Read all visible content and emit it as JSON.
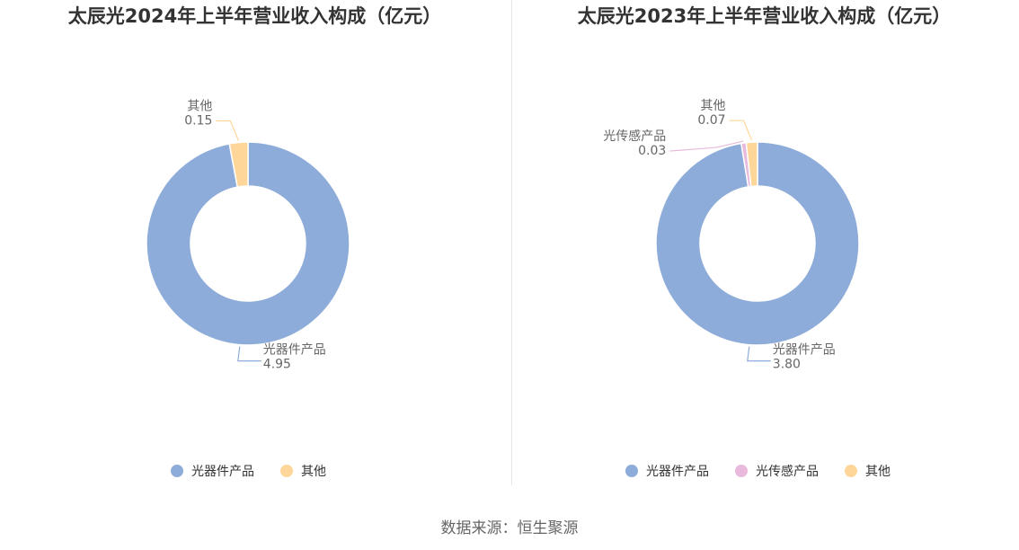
{
  "chart_data": [
    {
      "type": "pie",
      "title": "太辰光2024年上半年营业收入构成（亿元）",
      "series": [
        {
          "name": "光器件产品",
          "value": 4.95,
          "label": "4.95",
          "color": "#8eacd9"
        },
        {
          "name": "其他",
          "value": 0.15,
          "label": "0.15",
          "color": "#ffd699"
        }
      ],
      "legend": {
        "position": "bottom"
      }
    },
    {
      "type": "pie",
      "title": "太辰光2023年上半年营业收入构成（亿元）",
      "series": [
        {
          "name": "光器件产品",
          "value": 3.8,
          "label": "3.80",
          "color": "#8eacd9"
        },
        {
          "name": "光传感产品",
          "value": 0.03,
          "label": "0.03",
          "color": "#e8b9dc"
        },
        {
          "name": "其他",
          "value": 0.07,
          "label": "0.07",
          "color": "#ffd699"
        }
      ],
      "legend": {
        "position": "bottom"
      }
    }
  ],
  "source": "数据来源：恒生聚源"
}
